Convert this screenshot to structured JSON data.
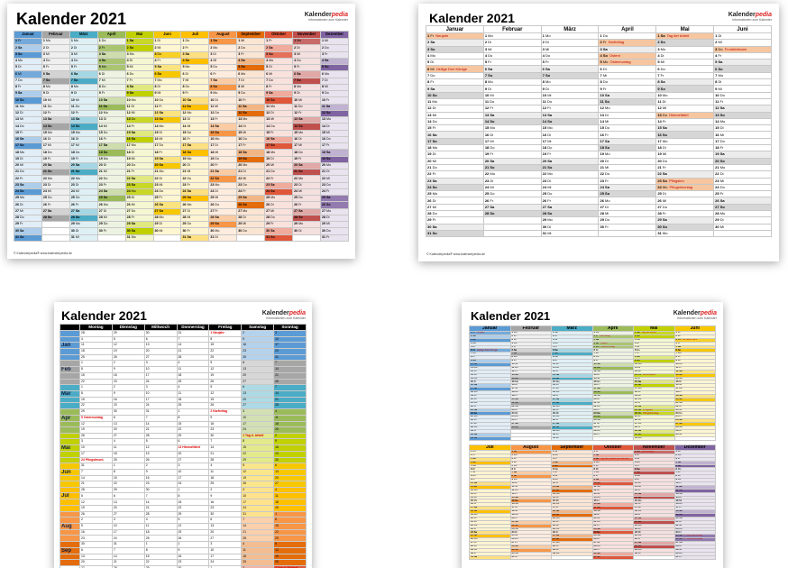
{
  "common": {
    "title": "Kalender 2021",
    "brand": "Kalenderpedia",
    "brand_plain": "Kalender",
    "brand_accent": "pedia",
    "brand_sub": "Informationen zum Kalender",
    "footer": "© Kalenderpedia®   www.kalenderpedia.de"
  },
  "months": [
    "Januar",
    "Februar",
    "März",
    "April",
    "Mai",
    "Juni",
    "Juli",
    "August",
    "September",
    "Oktober",
    "November",
    "Dezember"
  ],
  "month_colors": [
    "#5b9bd5",
    "#a6a6a6",
    "#4bacc6",
    "#9bbb59",
    "#c0d000",
    "#f7c800",
    "#ffc000",
    "#f79646",
    "#e46c0a",
    "#e0573a",
    "#c0504d",
    "#8064a2"
  ],
  "weekday_short": [
    "Mo",
    "Di",
    "Mi",
    "Do",
    "Fr",
    "Sa",
    "So"
  ],
  "holidays": [
    {
      "m": 0,
      "d": 1,
      "label": "Neujahr"
    },
    {
      "m": 0,
      "d": 6,
      "label": "Heilige Drei Könige"
    },
    {
      "m": 3,
      "d": 2,
      "label": "Karfreitag"
    },
    {
      "m": 3,
      "d": 4,
      "label": "Ostern"
    },
    {
      "m": 3,
      "d": 5,
      "label": "Ostermontag"
    },
    {
      "m": 4,
      "d": 1,
      "label": "Tag der Arbeit"
    },
    {
      "m": 4,
      "d": 13,
      "label": "Himmelfahrt"
    },
    {
      "m": 4,
      "d": 23,
      "label": "Pfingsten"
    },
    {
      "m": 4,
      "d": 24,
      "label": "Pfingstmontag"
    },
    {
      "m": 5,
      "d": 3,
      "label": "Fronleichnam"
    },
    {
      "m": 9,
      "d": 3,
      "label": "Tag der Deutschen Einheit"
    },
    {
      "m": 10,
      "d": 1,
      "label": "Allerheiligen"
    },
    {
      "m": 11,
      "d": 25,
      "label": "1. Weihnachtstag"
    },
    {
      "m": 11,
      "d": 26,
      "label": "2. Weihnachtstag"
    }
  ],
  "weekly": {
    "headers": [
      "Montag",
      "Dienstag",
      "Mittwoch",
      "Donnerstag",
      "Freitag",
      "Samstag",
      "Sonntag"
    ],
    "month_labels": [
      "Jan",
      "Feb",
      "Mär",
      "Apr",
      "Mai",
      "Jun",
      "Jul",
      "Aug",
      "Sep"
    ],
    "red_notes": [
      {
        "week": 0,
        "col": 4,
        "text": "1 Neujahr"
      },
      {
        "week": 13,
        "col": 4,
        "text": "2 Karfreitag"
      },
      {
        "week": 14,
        "col": 0,
        "text": "5 Ostermontag"
      },
      {
        "week": 17,
        "col": 5,
        "text": "1 Tag d. Arbeit"
      },
      {
        "week": 19,
        "col": 3,
        "text": "13 Himmelfahrt"
      },
      {
        "week": 21,
        "col": 0,
        "text": "24 Pfingstmont."
      },
      {
        "week": 39,
        "col": 6,
        "text": "3 Tag d. Einheit"
      }
    ]
  }
}
